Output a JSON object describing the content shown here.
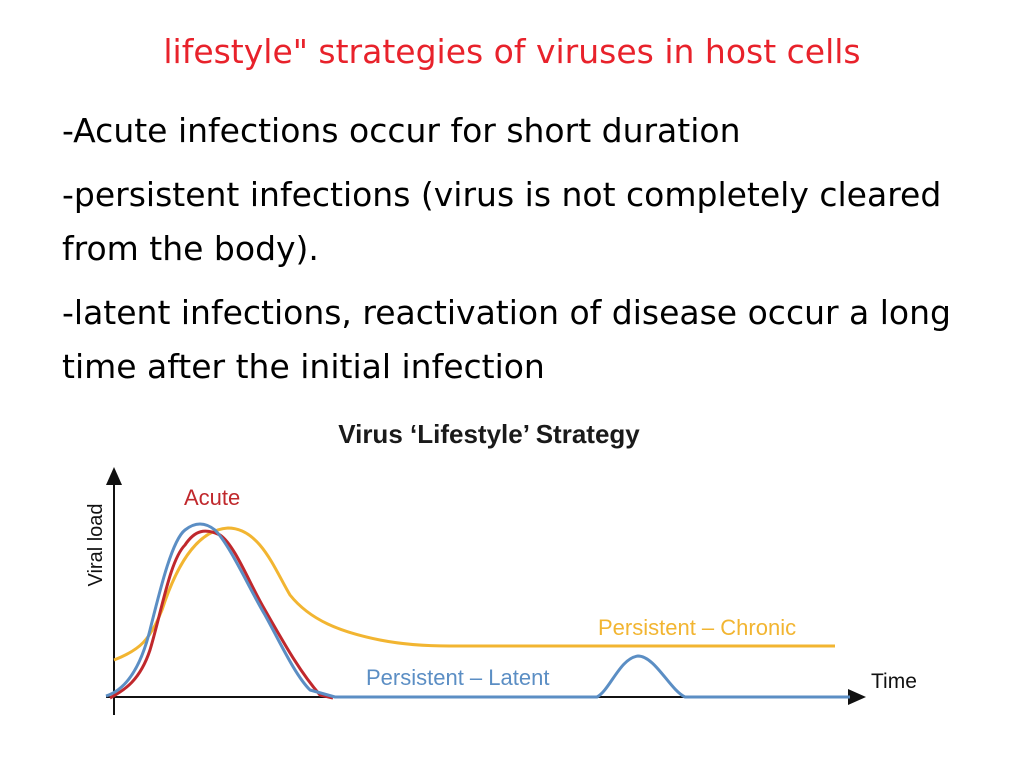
{
  "slide": {
    "title": "lifestyle\" strategies of viruses in host cells",
    "bullets": [
      "-Acute infections occur for short duration",
      "-persistent infections (virus is not completely cleared from the body).",
      "-latent infections, reactivation of disease occur a long time after the initial infection"
    ]
  },
  "diagram": {
    "title": "Virus ‘Lifestyle’ Strategy",
    "y_axis_label": "Viral load",
    "x_axis_label": "Time",
    "curve_labels": {
      "acute": "Acute",
      "chronic": "Persistent – Chronic",
      "latent": "Persistent – Latent"
    },
    "colors": {
      "acute": "#c0282c",
      "chronic": "#f2b531",
      "latent": "#5b8ec4",
      "axis": "#111111"
    }
  }
}
